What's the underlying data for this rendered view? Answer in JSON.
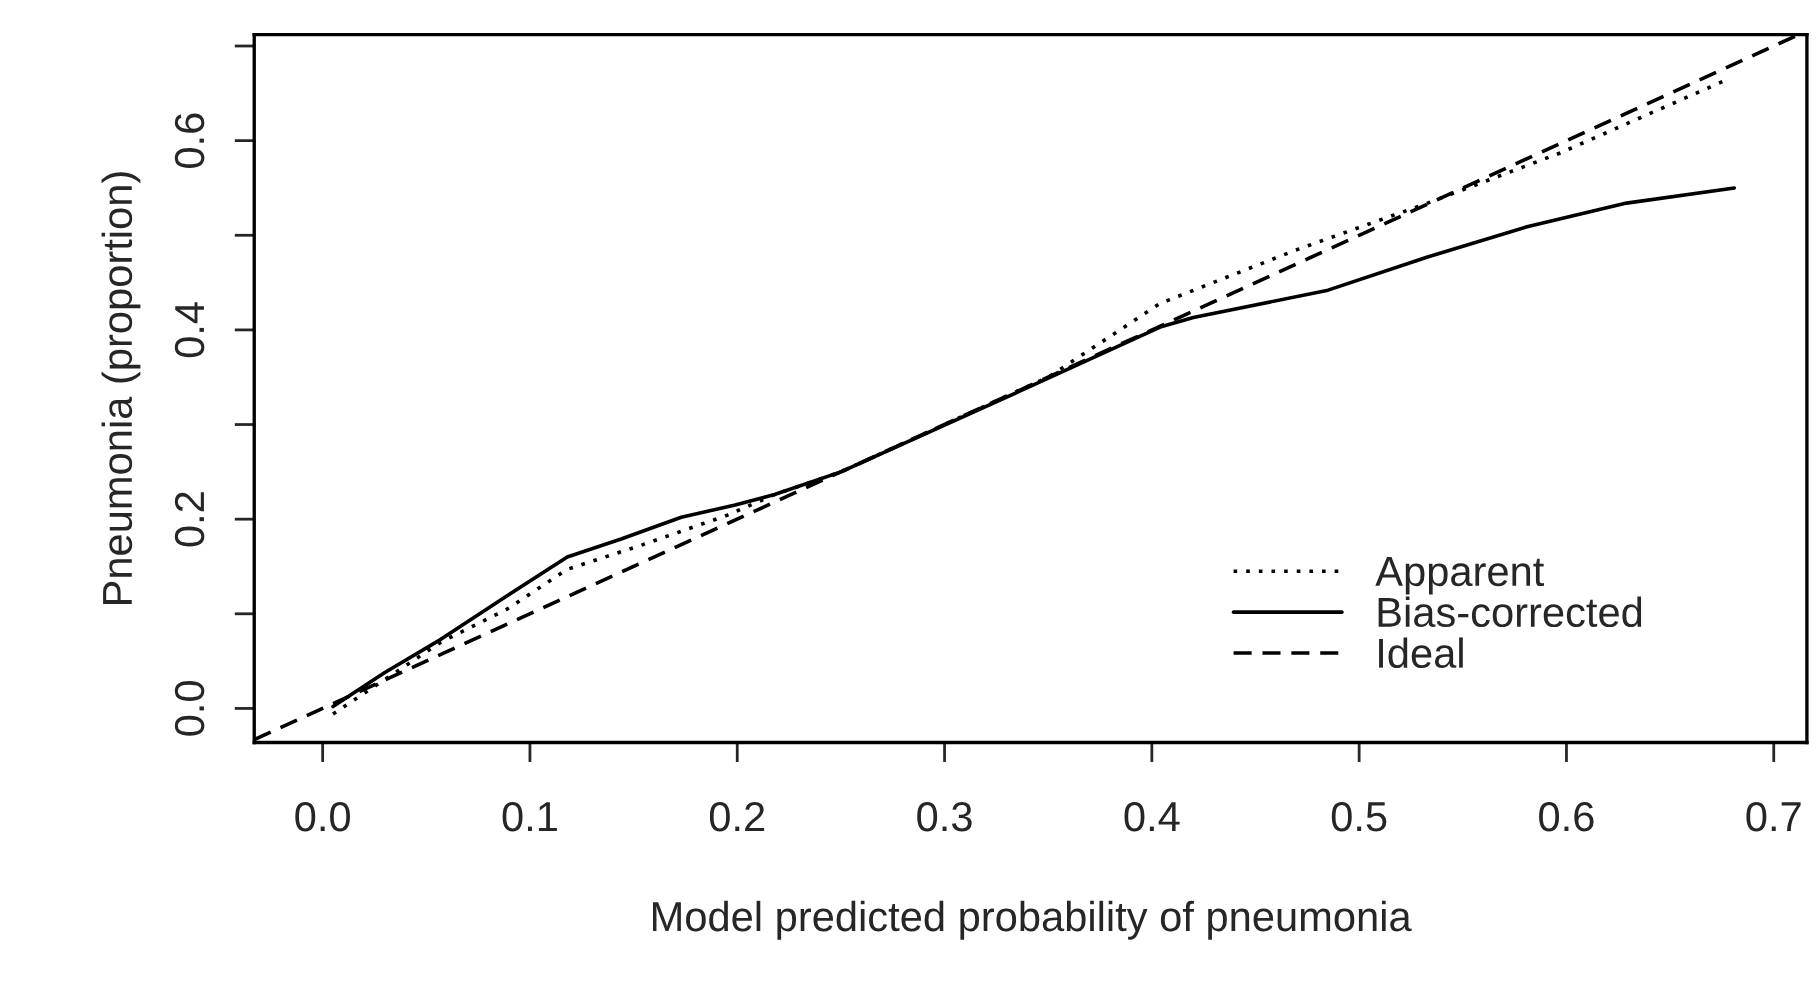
{
  "chart_data": {
    "type": "line",
    "xlabel": "Model predicted probability of pneumonia",
    "ylabel": "Pneumonia (proportion)",
    "xlim": [
      -0.033,
      0.716
    ],
    "ylim": [
      -0.036,
      0.712
    ],
    "xticks": [
      {
        "value": 0,
        "label": "0.0"
      },
      0.1,
      0.2,
      0.3,
      0.4,
      0.5,
      0.6,
      0.7
    ],
    "yticks": [
      {
        "value": 0,
        "label": "0.0"
      },
      {
        "value": 0.1,
        "label": null
      },
      0.2,
      {
        "value": 0.3,
        "label": null
      },
      0.4,
      {
        "value": 0.5,
        "label": null
      },
      0.6,
      {
        "value": 0.7,
        "label": null
      }
    ],
    "grid": false,
    "legend": "bottom right",
    "marker": "none",
    "series": [
      {
        "name": "Apparent",
        "color": "#000000",
        "line_style": "dotted",
        "x": [
          0.005,
          0.057,
          0.089,
          0.118,
          0.153,
          0.195,
          0.218,
          0.25,
          0.3,
          0.35,
          0.404,
          0.469,
          0.533,
          0.597,
          0.678
        ],
        "values": [
          -0.006,
          0.07,
          0.105,
          0.147,
          0.172,
          0.204,
          0.226,
          0.25,
          0.3,
          0.35,
          0.428,
          0.484,
          0.534,
          0.587,
          0.665
        ]
      },
      {
        "name": "Bias-corrected",
        "color": "#000000",
        "line_style": "solid",
        "x": [
          0.005,
          0.03,
          0.057,
          0.089,
          0.118,
          0.144,
          0.173,
          0.199,
          0.218,
          0.25,
          0.34,
          0.404,
          0.42,
          0.485,
          0.533,
          0.581,
          0.629,
          0.681
        ],
        "values": [
          0.002,
          0.038,
          0.073,
          0.119,
          0.16,
          0.179,
          0.202,
          0.215,
          0.226,
          0.25,
          0.339,
          0.403,
          0.413,
          0.442,
          0.477,
          0.509,
          0.534,
          0.55
        ]
      },
      {
        "name": "Ideal",
        "color": "#000000",
        "line_style": "dashed",
        "x": [
          -0.033,
          0.712
        ],
        "values": [
          -0.033,
          0.712
        ]
      }
    ]
  }
}
